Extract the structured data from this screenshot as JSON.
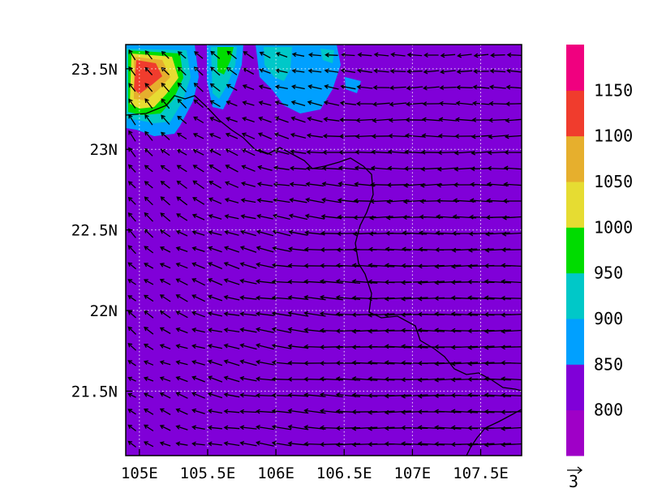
{
  "map": {
    "x_ticks": [
      {
        "label": "105E",
        "value": 105.0
      },
      {
        "label": "105.5E",
        "value": 105.5
      },
      {
        "label": "106E",
        "value": 106.0
      },
      {
        "label": "106.5E",
        "value": 106.5
      },
      {
        "label": "107E",
        "value": 107.0
      },
      {
        "label": "107.5E",
        "value": 107.5
      }
    ],
    "y_ticks": [
      {
        "label": "23.5N",
        "value": 23.5
      },
      {
        "label": "23N",
        "value": 23.0
      },
      {
        "label": "22.5N",
        "value": 22.5
      },
      {
        "label": "22N",
        "value": 22.0
      },
      {
        "label": "21.5N",
        "value": 21.5
      }
    ],
    "lon_range": [
      104.9,
      107.8
    ],
    "lat_range": [
      21.1,
      23.65
    ],
    "grid": "dotted",
    "background_color": "#8000d8"
  },
  "colorbar": {
    "labels": [
      "800",
      "850",
      "900",
      "950",
      "1000",
      "1050",
      "1100",
      "1150"
    ],
    "colors": [
      "#9f00c7",
      "#8000d8",
      "#00a0ff",
      "#00c8c8",
      "#00dc00",
      "#e6dc32",
      "#e6af2d",
      "#f03c2d",
      "#f0007f"
    ]
  },
  "vector_reference": {
    "label": "3"
  }
}
